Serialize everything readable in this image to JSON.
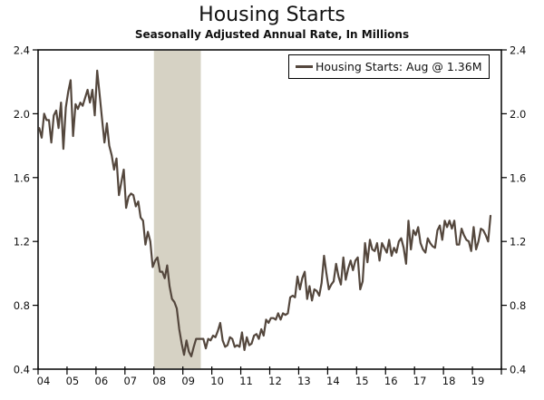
{
  "header": {
    "title": "Housing Starts",
    "subtitle": "Seasonally Adjusted Annual Rate, In Millions"
  },
  "legend": {
    "label": "Housing Starts: Aug @ 1.36M"
  },
  "colors": {
    "line": "#54473d",
    "recession_band": "#d6d2c4",
    "axis": "#000000",
    "background": "#ffffff",
    "text": "#111111"
  },
  "chart_data": {
    "type": "line",
    "title": "Housing Starts",
    "subtitle": "Seasonally Adjusted Annual Rate, In Millions",
    "legend_entries": [
      "Housing Starts: Aug @ 1.36M"
    ],
    "ylim": [
      0.4,
      2.4
    ],
    "xlim_years": [
      2004,
      2020
    ],
    "grid": false,
    "legend_position": "top-right-inside",
    "y_ticks": [
      "2.4",
      "2.0",
      "1.6",
      "1.2",
      "0.8",
      "0.4"
    ],
    "y_tick_values": [
      2.4,
      2.0,
      1.6,
      1.2,
      0.8,
      0.4
    ],
    "y_axis_sides": [
      "left",
      "right"
    ],
    "x_tick_labels": [
      "04",
      "05",
      "06",
      "07",
      "08",
      "09",
      "10",
      "11",
      "12",
      "13",
      "14",
      "15",
      "16",
      "17",
      "18",
      "19"
    ],
    "recession_band_years": [
      2008.0,
      2009.62
    ],
    "x_start": {
      "year": 2004,
      "month": "Jan"
    },
    "x_end": {
      "year": 2019,
      "month": "Aug"
    },
    "last_point": {
      "label": "Aug 2019",
      "value": 1.36
    },
    "series": [
      {
        "name": "Housing Starts",
        "unit": "millions, seasonally adjusted annual rate",
        "frequency": "monthly",
        "monthly_values": [
          1.91,
          1.85,
          2.0,
          1.96,
          1.96,
          1.82,
          1.99,
          2.02,
          1.91,
          2.07,
          1.78,
          2.04,
          2.14,
          2.21,
          1.86,
          2.06,
          2.03,
          2.07,
          2.05,
          2.1,
          2.15,
          2.07,
          2.15,
          1.99,
          2.27,
          2.12,
          1.97,
          1.82,
          1.94,
          1.8,
          1.74,
          1.65,
          1.72,
          1.49,
          1.57,
          1.65,
          1.41,
          1.48,
          1.5,
          1.49,
          1.42,
          1.45,
          1.35,
          1.33,
          1.18,
          1.26,
          1.2,
          1.04,
          1.08,
          1.1,
          1.01,
          1.01,
          0.97,
          1.05,
          0.92,
          0.84,
          0.82,
          0.78,
          0.65,
          0.56,
          0.49,
          0.58,
          0.51,
          0.48,
          0.54,
          0.59,
          0.59,
          0.59,
          0.59,
          0.53,
          0.59,
          0.58,
          0.61,
          0.6,
          0.64,
          0.69,
          0.58,
          0.54,
          0.55,
          0.6,
          0.59,
          0.54,
          0.55,
          0.54,
          0.63,
          0.52,
          0.6,
          0.55,
          0.56,
          0.61,
          0.62,
          0.59,
          0.65,
          0.61,
          0.71,
          0.69,
          0.72,
          0.72,
          0.71,
          0.75,
          0.71,
          0.75,
          0.74,
          0.75,
          0.85,
          0.86,
          0.85,
          0.98,
          0.9,
          0.97,
          1.01,
          0.84,
          0.92,
          0.83,
          0.9,
          0.89,
          0.86,
          0.94,
          1.11,
          1.0,
          0.9,
          0.93,
          0.95,
          1.06,
          0.98,
          0.93,
          1.1,
          0.96,
          1.03,
          1.08,
          1.02,
          1.08,
          1.1,
          0.9,
          0.95,
          1.19,
          1.07,
          1.21,
          1.15,
          1.14,
          1.19,
          1.08,
          1.19,
          1.16,
          1.13,
          1.21,
          1.11,
          1.16,
          1.13,
          1.2,
          1.22,
          1.16,
          1.06,
          1.33,
          1.15,
          1.27,
          1.24,
          1.29,
          1.19,
          1.15,
          1.13,
          1.22,
          1.19,
          1.17,
          1.16,
          1.27,
          1.3,
          1.21,
          1.33,
          1.29,
          1.33,
          1.28,
          1.33,
          1.18,
          1.18,
          1.28,
          1.24,
          1.21,
          1.2,
          1.14,
          1.29,
          1.15,
          1.2,
          1.28,
          1.27,
          1.24,
          1.2,
          1.36
        ]
      }
    ]
  }
}
